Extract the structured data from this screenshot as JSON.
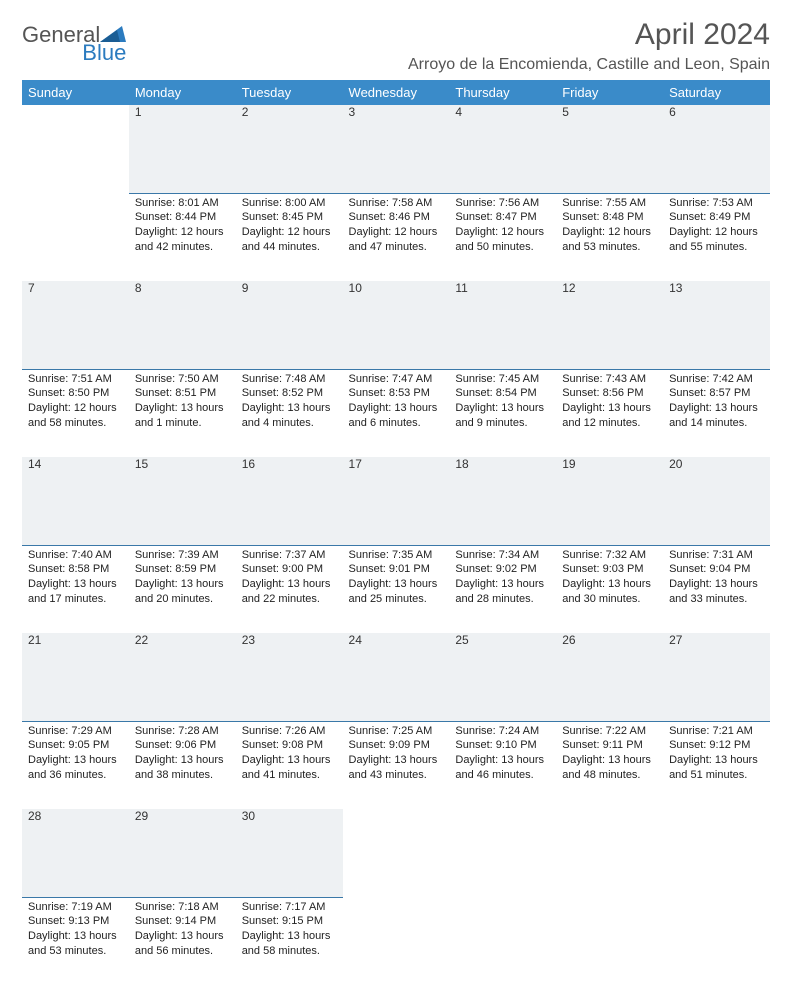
{
  "logo": {
    "general": "General",
    "blue": "Blue"
  },
  "title": "April 2024",
  "location": "Arroyo de la Encomienda, Castille and Leon, Spain",
  "colors": {
    "header_bg": "#3a8bc9",
    "daynum_bg": "#eef1f3",
    "daynum_border": "#3a78a8",
    "text": "#222222",
    "muted": "#555555"
  },
  "weekdays": [
    "Sunday",
    "Monday",
    "Tuesday",
    "Wednesday",
    "Thursday",
    "Friday",
    "Saturday"
  ],
  "weeks": [
    [
      {
        "num": "",
        "lines": []
      },
      {
        "num": "1",
        "lines": [
          "Sunrise: 8:01 AM",
          "Sunset: 8:44 PM",
          "Daylight: 12 hours",
          "and 42 minutes."
        ]
      },
      {
        "num": "2",
        "lines": [
          "Sunrise: 8:00 AM",
          "Sunset: 8:45 PM",
          "Daylight: 12 hours",
          "and 44 minutes."
        ]
      },
      {
        "num": "3",
        "lines": [
          "Sunrise: 7:58 AM",
          "Sunset: 8:46 PM",
          "Daylight: 12 hours",
          "and 47 minutes."
        ]
      },
      {
        "num": "4",
        "lines": [
          "Sunrise: 7:56 AM",
          "Sunset: 8:47 PM",
          "Daylight: 12 hours",
          "and 50 minutes."
        ]
      },
      {
        "num": "5",
        "lines": [
          "Sunrise: 7:55 AM",
          "Sunset: 8:48 PM",
          "Daylight: 12 hours",
          "and 53 minutes."
        ]
      },
      {
        "num": "6",
        "lines": [
          "Sunrise: 7:53 AM",
          "Sunset: 8:49 PM",
          "Daylight: 12 hours",
          "and 55 minutes."
        ]
      }
    ],
    [
      {
        "num": "7",
        "lines": [
          "Sunrise: 7:51 AM",
          "Sunset: 8:50 PM",
          "Daylight: 12 hours",
          "and 58 minutes."
        ]
      },
      {
        "num": "8",
        "lines": [
          "Sunrise: 7:50 AM",
          "Sunset: 8:51 PM",
          "Daylight: 13 hours",
          "and 1 minute."
        ]
      },
      {
        "num": "9",
        "lines": [
          "Sunrise: 7:48 AM",
          "Sunset: 8:52 PM",
          "Daylight: 13 hours",
          "and 4 minutes."
        ]
      },
      {
        "num": "10",
        "lines": [
          "Sunrise: 7:47 AM",
          "Sunset: 8:53 PM",
          "Daylight: 13 hours",
          "and 6 minutes."
        ]
      },
      {
        "num": "11",
        "lines": [
          "Sunrise: 7:45 AM",
          "Sunset: 8:54 PM",
          "Daylight: 13 hours",
          "and 9 minutes."
        ]
      },
      {
        "num": "12",
        "lines": [
          "Sunrise: 7:43 AM",
          "Sunset: 8:56 PM",
          "Daylight: 13 hours",
          "and 12 minutes."
        ]
      },
      {
        "num": "13",
        "lines": [
          "Sunrise: 7:42 AM",
          "Sunset: 8:57 PM",
          "Daylight: 13 hours",
          "and 14 minutes."
        ]
      }
    ],
    [
      {
        "num": "14",
        "lines": [
          "Sunrise: 7:40 AM",
          "Sunset: 8:58 PM",
          "Daylight: 13 hours",
          "and 17 minutes."
        ]
      },
      {
        "num": "15",
        "lines": [
          "Sunrise: 7:39 AM",
          "Sunset: 8:59 PM",
          "Daylight: 13 hours",
          "and 20 minutes."
        ]
      },
      {
        "num": "16",
        "lines": [
          "Sunrise: 7:37 AM",
          "Sunset: 9:00 PM",
          "Daylight: 13 hours",
          "and 22 minutes."
        ]
      },
      {
        "num": "17",
        "lines": [
          "Sunrise: 7:35 AM",
          "Sunset: 9:01 PM",
          "Daylight: 13 hours",
          "and 25 minutes."
        ]
      },
      {
        "num": "18",
        "lines": [
          "Sunrise: 7:34 AM",
          "Sunset: 9:02 PM",
          "Daylight: 13 hours",
          "and 28 minutes."
        ]
      },
      {
        "num": "19",
        "lines": [
          "Sunrise: 7:32 AM",
          "Sunset: 9:03 PM",
          "Daylight: 13 hours",
          "and 30 minutes."
        ]
      },
      {
        "num": "20",
        "lines": [
          "Sunrise: 7:31 AM",
          "Sunset: 9:04 PM",
          "Daylight: 13 hours",
          "and 33 minutes."
        ]
      }
    ],
    [
      {
        "num": "21",
        "lines": [
          "Sunrise: 7:29 AM",
          "Sunset: 9:05 PM",
          "Daylight: 13 hours",
          "and 36 minutes."
        ]
      },
      {
        "num": "22",
        "lines": [
          "Sunrise: 7:28 AM",
          "Sunset: 9:06 PM",
          "Daylight: 13 hours",
          "and 38 minutes."
        ]
      },
      {
        "num": "23",
        "lines": [
          "Sunrise: 7:26 AM",
          "Sunset: 9:08 PM",
          "Daylight: 13 hours",
          "and 41 minutes."
        ]
      },
      {
        "num": "24",
        "lines": [
          "Sunrise: 7:25 AM",
          "Sunset: 9:09 PM",
          "Daylight: 13 hours",
          "and 43 minutes."
        ]
      },
      {
        "num": "25",
        "lines": [
          "Sunrise: 7:24 AM",
          "Sunset: 9:10 PM",
          "Daylight: 13 hours",
          "and 46 minutes."
        ]
      },
      {
        "num": "26",
        "lines": [
          "Sunrise: 7:22 AM",
          "Sunset: 9:11 PM",
          "Daylight: 13 hours",
          "and 48 minutes."
        ]
      },
      {
        "num": "27",
        "lines": [
          "Sunrise: 7:21 AM",
          "Sunset: 9:12 PM",
          "Daylight: 13 hours",
          "and 51 minutes."
        ]
      }
    ],
    [
      {
        "num": "28",
        "lines": [
          "Sunrise: 7:19 AM",
          "Sunset: 9:13 PM",
          "Daylight: 13 hours",
          "and 53 minutes."
        ]
      },
      {
        "num": "29",
        "lines": [
          "Sunrise: 7:18 AM",
          "Sunset: 9:14 PM",
          "Daylight: 13 hours",
          "and 56 minutes."
        ]
      },
      {
        "num": "30",
        "lines": [
          "Sunrise: 7:17 AM",
          "Sunset: 9:15 PM",
          "Daylight: 13 hours",
          "and 58 minutes."
        ]
      },
      {
        "num": "",
        "lines": []
      },
      {
        "num": "",
        "lines": []
      },
      {
        "num": "",
        "lines": []
      },
      {
        "num": "",
        "lines": []
      }
    ]
  ]
}
